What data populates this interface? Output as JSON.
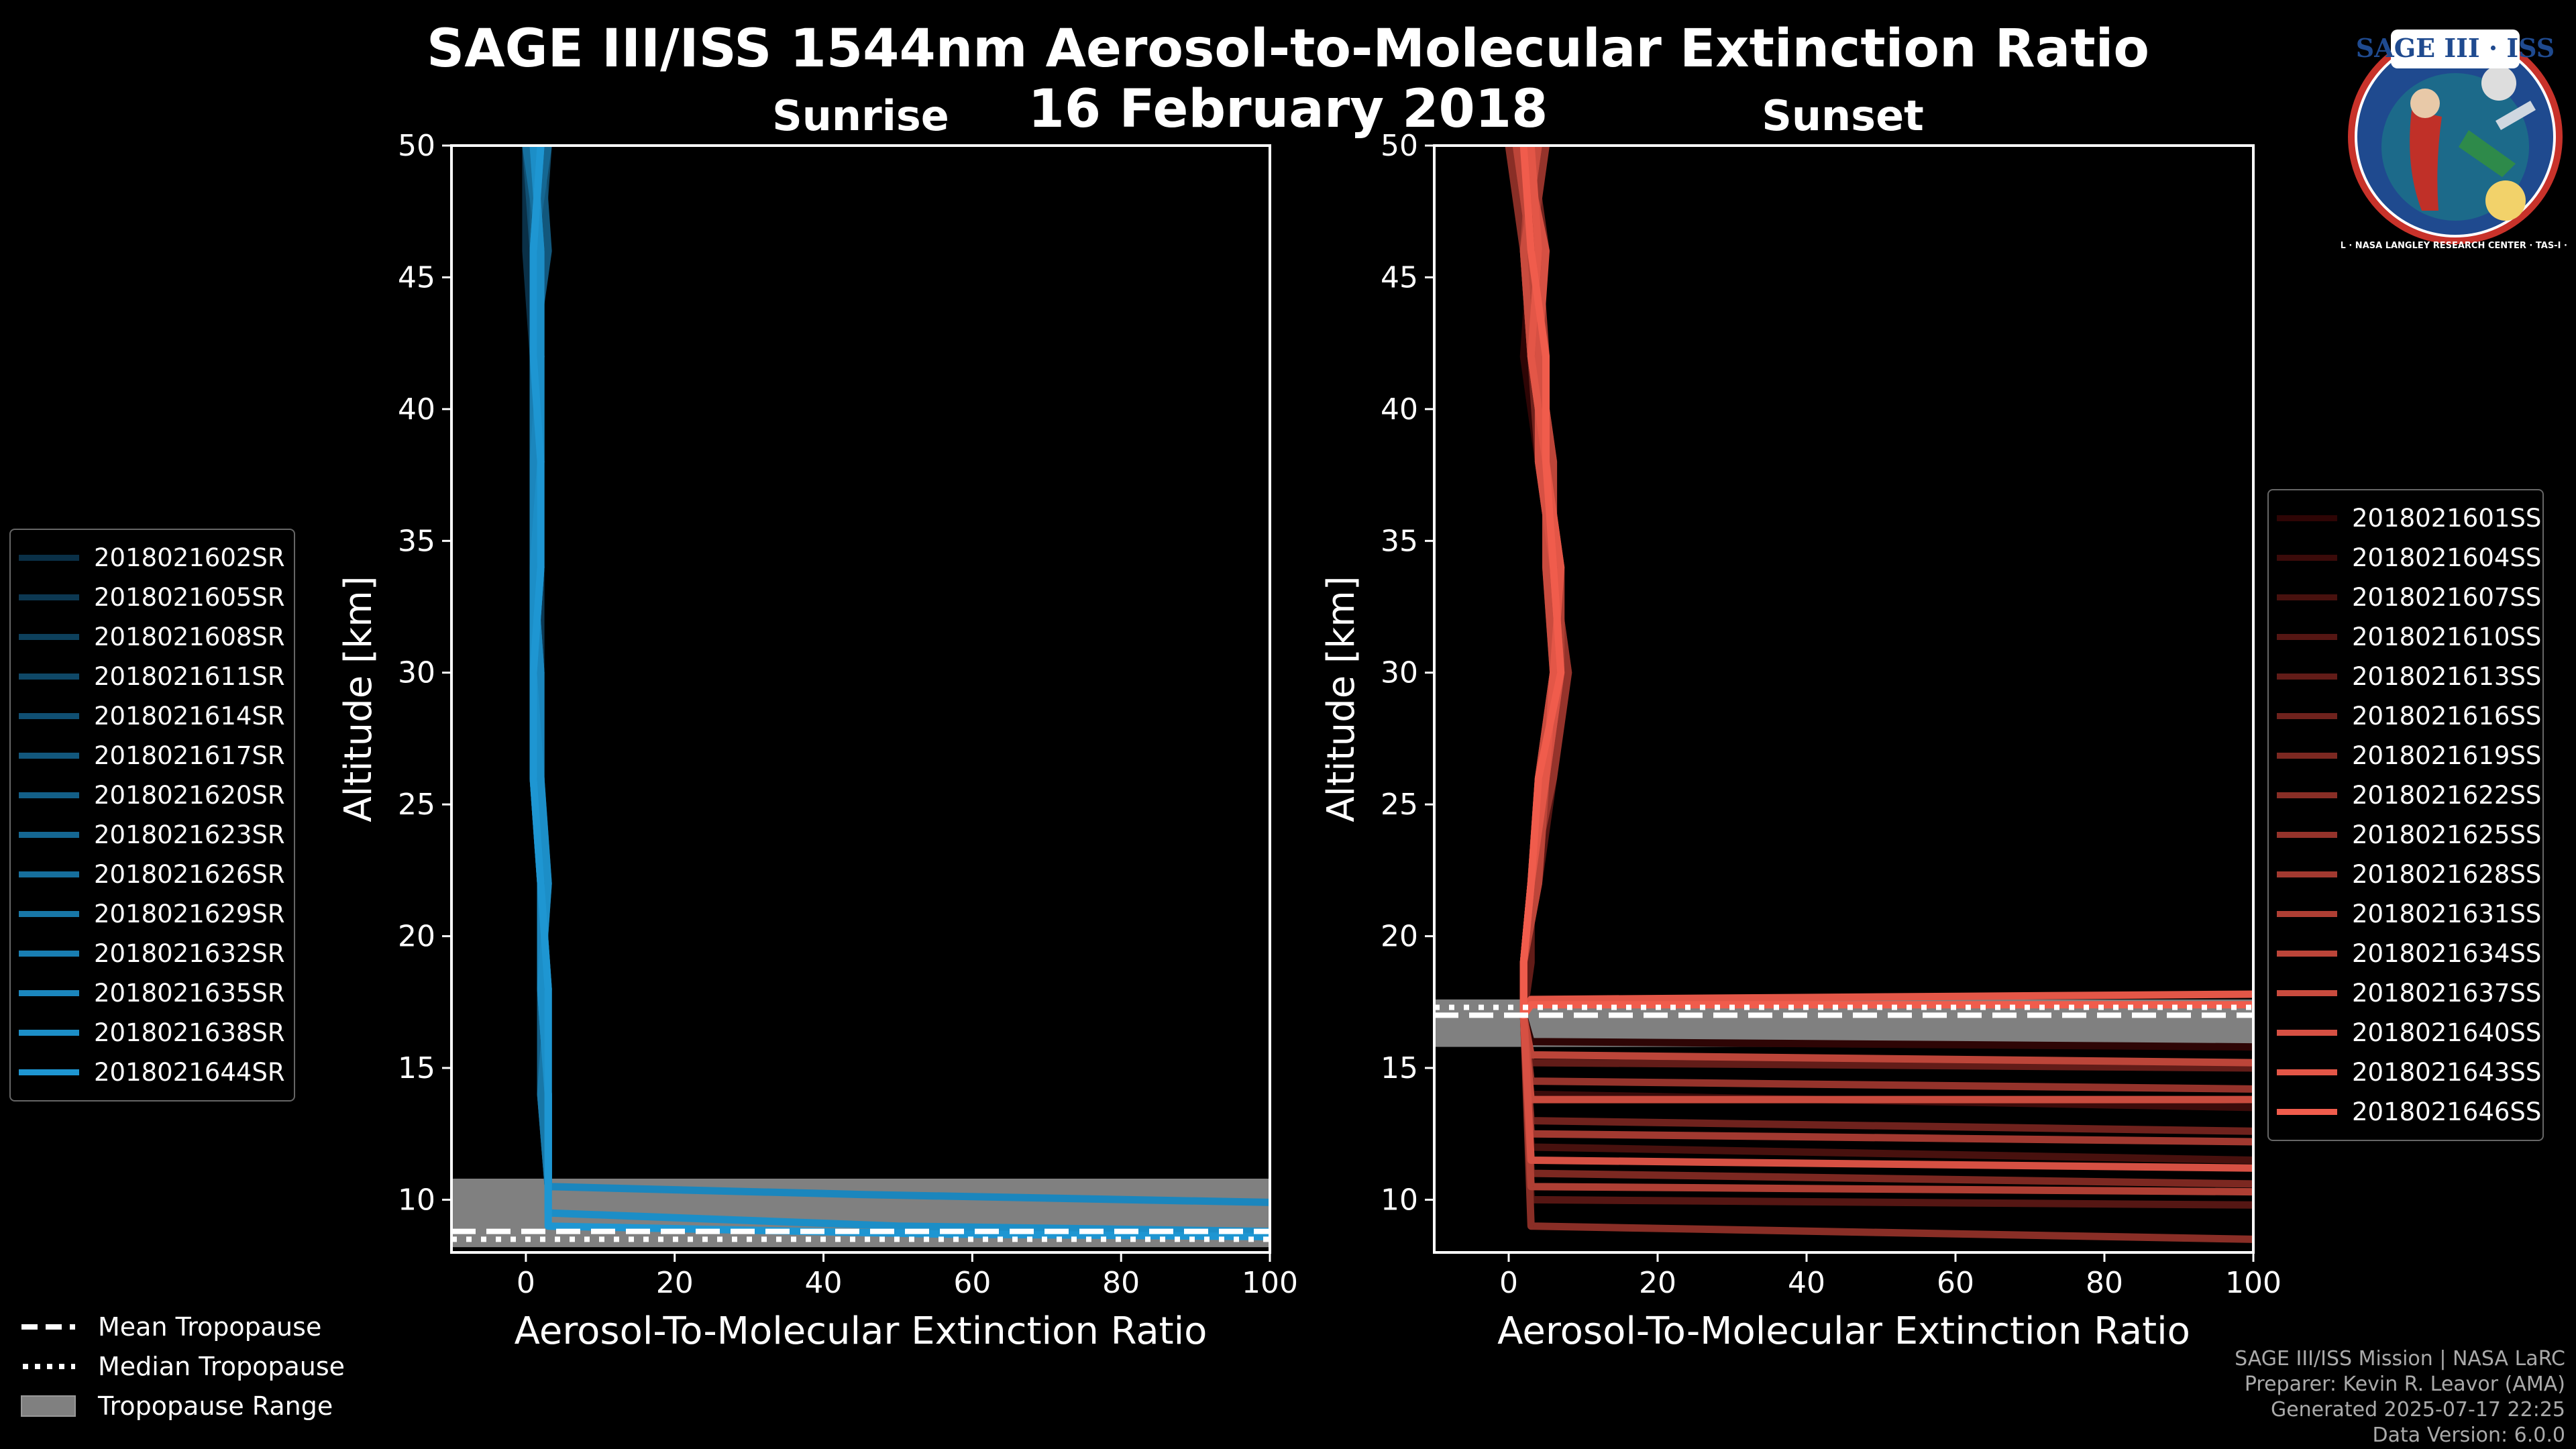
{
  "title_line1": "SAGE III/ISS 1544nm Aerosol-to-Molecular Extinction Ratio",
  "title_line2": "16 February 2018",
  "logo": {
    "text": "SAGE III · ISS",
    "ring_text": "BALL · NASA LANGLEY RESEARCH CENTER · TAS-I · ESA"
  },
  "credits": {
    "line1": "SAGE III/ISS Mission | NASA LaRC",
    "line2": "Preparer: Kevin R. Leavor (AMA)",
    "line3": "Generated 2025-07-17 22:25",
    "line4": "Data Version: 6.0.0"
  },
  "tropopause_legend": {
    "mean": "Mean Tropopause",
    "median": "Median Tropopause",
    "range": "Tropopause Range"
  },
  "colors": {
    "sunrise_dark": "#0a3047",
    "sunrise_light": "#1e96d2",
    "sunset_dark": "#2e0505",
    "sunset_light": "#f05c4c",
    "tropopause_range": "#808080"
  },
  "chart_data": [
    {
      "type": "line",
      "panel": "sunrise",
      "title": "Sunrise",
      "xlabel": "Aerosol-To-Molecular Extinction Ratio",
      "ylabel": "Altitude [km]",
      "xlim": [
        -10,
        100
      ],
      "ylim": [
        8,
        50
      ],
      "xticks": [
        "0",
        "20",
        "40",
        "60",
        "80",
        "100"
      ],
      "yticks": [
        "10",
        "15",
        "20",
        "25",
        "30",
        "35",
        "40",
        "45",
        "50"
      ],
      "legend": "left-outside",
      "tropopause": {
        "mean": 8.8,
        "median": 8.5,
        "range": [
          8.2,
          10.8
        ]
      },
      "series": [
        {
          "name": "2018021602SR",
          "x": [
            0,
            0,
            1,
            2,
            2,
            1,
            1,
            2,
            2,
            3,
            3
          ],
          "y": [
            50,
            46,
            42,
            38,
            34,
            30,
            26,
            22,
            18,
            14,
            10.5
          ]
        },
        {
          "name": "2018021605SR",
          "x": [
            2,
            1,
            1,
            1,
            2,
            2,
            2,
            2,
            3,
            3,
            3
          ],
          "y": [
            50,
            46,
            42,
            38,
            34,
            30,
            26,
            22,
            18,
            14,
            10.5
          ]
        },
        {
          "name": "2018021608SR",
          "x": [
            1,
            2,
            1,
            2,
            1,
            2,
            1,
            2,
            2,
            3,
            3
          ],
          "y": [
            50,
            46,
            42,
            38,
            34,
            30,
            26,
            22,
            18,
            14,
            10.5
          ]
        },
        {
          "name": "2018021611SR",
          "x": [
            3,
            2,
            2,
            1,
            1,
            1,
            2,
            2,
            2,
            2,
            3
          ],
          "y": [
            50,
            46,
            42,
            38,
            34,
            30,
            26,
            22,
            18,
            14,
            10.5
          ]
        },
        {
          "name": "2018021614SR",
          "x": [
            0,
            1,
            2,
            2,
            1,
            1,
            1,
            2,
            2,
            3,
            3
          ],
          "y": [
            50,
            46,
            42,
            38,
            34,
            30,
            26,
            22,
            18,
            14,
            10.5
          ]
        },
        {
          "name": "2018021617SR",
          "x": [
            2,
            3,
            1,
            1,
            2,
            1,
            2,
            2,
            3,
            3,
            3
          ],
          "y": [
            50,
            46,
            42,
            38,
            34,
            30,
            26,
            22,
            18,
            14,
            10.5
          ]
        },
        {
          "name": "2018021620SR",
          "x": [
            1,
            1,
            2,
            1,
            1,
            2,
            2,
            3,
            2,
            2,
            3
          ],
          "y": [
            50,
            46,
            42,
            38,
            34,
            30,
            26,
            22,
            18,
            14,
            10.5
          ]
        },
        {
          "name": "2018021623SR",
          "x": [
            3,
            1,
            1,
            2,
            2,
            1,
            1,
            2,
            2,
            3,
            3
          ],
          "y": [
            50,
            46,
            42,
            38,
            34,
            30,
            26,
            22,
            18,
            14,
            10.5
          ]
        },
        {
          "name": "2018021626SR",
          "x": [
            0,
            2,
            2,
            1,
            1,
            1,
            2,
            2,
            2,
            3,
            3
          ],
          "y": [
            50,
            46,
            42,
            38,
            34,
            30,
            26,
            22,
            18,
            14,
            10.5
          ]
        },
        {
          "name": "2018021629SR",
          "x": [
            2,
            1,
            2,
            2,
            1,
            2,
            1,
            2,
            3,
            2,
            3
          ],
          "y": [
            50,
            46,
            42,
            38,
            34,
            30,
            26,
            22,
            18,
            14,
            10.5
          ]
        },
        {
          "name": "2018021632SR",
          "x": [
            1,
            2,
            1,
            1,
            2,
            1,
            2,
            2,
            2,
            3,
            3
          ],
          "y": [
            50,
            46,
            42,
            38,
            34,
            30,
            26,
            22,
            18,
            14,
            10.5
          ]
        },
        {
          "name": "2018021635SR",
          "x": [
            2,
            1,
            2,
            1,
            1,
            2,
            2,
            2,
            2,
            3,
            3,
            45,
            100
          ],
          "y": [
            50,
            46,
            42,
            38,
            34,
            30,
            26,
            22,
            18,
            14,
            10.5,
            10.2,
            9.9
          ]
        },
        {
          "name": "2018021638SR",
          "x": [
            1,
            2,
            2,
            2,
            1,
            1,
            2,
            3,
            2,
            3,
            3,
            50,
            100
          ],
          "y": [
            50,
            46,
            42,
            38,
            34,
            30,
            26,
            22,
            18,
            14,
            9.5,
            9.0,
            8.8
          ]
        },
        {
          "name": "2018021644SR",
          "x": [
            2,
            1,
            1,
            2,
            2,
            1,
            1,
            2,
            3,
            3,
            3,
            55,
            100
          ],
          "y": [
            50,
            46,
            42,
            38,
            34,
            30,
            26,
            22,
            18,
            14,
            9.0,
            8.7,
            8.6
          ]
        }
      ]
    },
    {
      "type": "line",
      "panel": "sunset",
      "title": "Sunset",
      "xlabel": "Aerosol-To-Molecular Extinction Ratio",
      "ylabel": "Altitude [km]",
      "xlim": [
        -10,
        100
      ],
      "ylim": [
        8,
        50
      ],
      "xticks": [
        "0",
        "20",
        "40",
        "60",
        "80",
        "100"
      ],
      "yticks": [
        "10",
        "15",
        "20",
        "25",
        "30",
        "35",
        "40",
        "45",
        "50"
      ],
      "legend": "right",
      "tropopause": {
        "mean": 17.0,
        "median": 17.3,
        "range": [
          15.8,
          17.6
        ]
      },
      "series": [
        {
          "name": "2018021601SS",
          "x": [
            1,
            3,
            2,
            4,
            6,
            7,
            5,
            3,
            2,
            2,
            3,
            100
          ],
          "y": [
            50,
            46,
            42,
            38,
            34,
            30,
            26,
            22,
            19,
            17,
            16,
            15.8
          ]
        },
        {
          "name": "2018021604SS",
          "x": [
            3,
            2,
            4,
            5,
            7,
            6,
            4,
            3,
            2,
            2,
            3,
            100
          ],
          "y": [
            50,
            46,
            42,
            38,
            34,
            30,
            26,
            22,
            19,
            17,
            14,
            13.5
          ]
        },
        {
          "name": "2018021607SS",
          "x": [
            2,
            4,
            3,
            5,
            6,
            8,
            5,
            3,
            2,
            2,
            3,
            100
          ],
          "y": [
            50,
            46,
            42,
            38,
            34,
            30,
            26,
            22,
            19,
            17,
            12,
            11.5
          ]
        },
        {
          "name": "2018021610SS",
          "x": [
            4,
            3,
            5,
            4,
            6,
            7,
            6,
            4,
            2,
            2,
            3,
            100
          ],
          "y": [
            50,
            46,
            42,
            38,
            34,
            30,
            26,
            22,
            19,
            17,
            10,
            9.8
          ]
        },
        {
          "name": "2018021613SS",
          "x": [
            1,
            2,
            4,
            5,
            6,
            6,
            5,
            3,
            3,
            2,
            3,
            100
          ],
          "y": [
            50,
            46,
            42,
            38,
            34,
            30,
            26,
            22,
            19,
            17,
            15.2,
            15.0
          ]
        },
        {
          "name": "2018021616SS",
          "x": [
            3,
            5,
            3,
            4,
            7,
            7,
            4,
            3,
            2,
            2,
            3,
            100
          ],
          "y": [
            50,
            46,
            42,
            38,
            34,
            30,
            26,
            22,
            19,
            17,
            13,
            12.6
          ]
        },
        {
          "name": "2018021619SS",
          "x": [
            2,
            3,
            4,
            6,
            5,
            6,
            5,
            3,
            2,
            2,
            3,
            100
          ],
          "y": [
            50,
            46,
            42,
            38,
            34,
            30,
            26,
            22,
            19,
            17,
            11,
            10.6
          ]
        },
        {
          "name": "2018021622SS",
          "x": [
            0,
            2,
            3,
            5,
            6,
            7,
            5,
            4,
            2,
            2,
            3,
            100
          ],
          "y": [
            50,
            46,
            42,
            38,
            34,
            30,
            26,
            22,
            19,
            17,
            9,
            8.5
          ]
        },
        {
          "name": "2018021625SS",
          "x": [
            5,
            3,
            4,
            5,
            6,
            8,
            6,
            3,
            2,
            2,
            3,
            100
          ],
          "y": [
            50,
            46,
            42,
            38,
            34,
            30,
            26,
            22,
            19,
            17,
            14.5,
            14.2
          ]
        },
        {
          "name": "2018021628SS",
          "x": [
            2,
            4,
            5,
            4,
            6,
            6,
            4,
            3,
            2,
            2,
            3,
            100
          ],
          "y": [
            50,
            46,
            42,
            38,
            34,
            30,
            26,
            22,
            19,
            17,
            12.5,
            12.2
          ]
        },
        {
          "name": "2018021631SS",
          "x": [
            3,
            2,
            3,
            5,
            7,
            7,
            5,
            3,
            2,
            2,
            3,
            100
          ],
          "y": [
            50,
            46,
            42,
            38,
            34,
            30,
            26,
            22,
            19,
            17,
            10.5,
            10.3
          ]
        },
        {
          "name": "2018021634SS",
          "x": [
            1,
            3,
            4,
            6,
            6,
            7,
            5,
            4,
            2,
            2,
            3,
            100
          ],
          "y": [
            50,
            46,
            42,
            38,
            34,
            30,
            26,
            22,
            19,
            17,
            15.5,
            15.2
          ]
        },
        {
          "name": "2018021637SS",
          "x": [
            4,
            2,
            3,
            5,
            5,
            6,
            4,
            3,
            2,
            2,
            3,
            100
          ],
          "y": [
            50,
            46,
            42,
            38,
            34,
            30,
            26,
            22,
            19,
            17,
            13.8,
            13.8
          ]
        },
        {
          "name": "2018021640SS",
          "x": [
            2,
            5,
            4,
            4,
            6,
            7,
            5,
            3,
            2,
            2,
            3,
            100
          ],
          "y": [
            50,
            46,
            42,
            38,
            34,
            30,
            26,
            22,
            19,
            17,
            11.5,
            11.2
          ]
        },
        {
          "name": "2018021643SS",
          "x": [
            3,
            4,
            3,
            5,
            7,
            6,
            5,
            3,
            2,
            2,
            3,
            100
          ],
          "y": [
            50,
            46,
            42,
            38,
            34,
            30,
            26,
            22,
            19,
            17,
            17.6,
            17.8
          ]
        },
        {
          "name": "2018021646SS",
          "x": [
            2,
            3,
            5,
            5,
            6,
            7,
            4,
            3,
            2,
            2,
            3,
            100
          ],
          "y": [
            50,
            46,
            42,
            38,
            34,
            30,
            26,
            22,
            19,
            17,
            17.4,
            17.4
          ]
        }
      ]
    }
  ]
}
